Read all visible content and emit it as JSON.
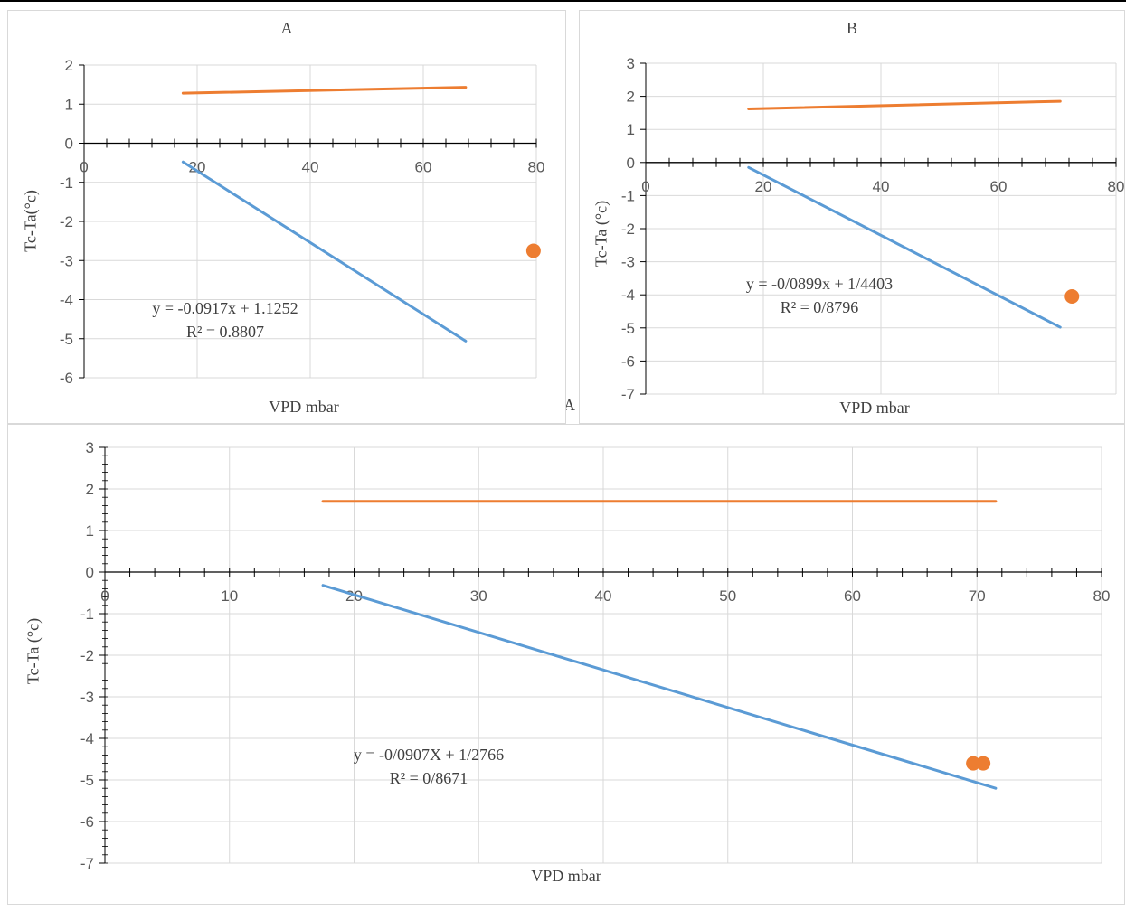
{
  "colors": {
    "fit_line": "#5b9bd5",
    "series2": "#ed7d31",
    "grid": "#d9d9d9",
    "axis": "#000000",
    "text": "#404040"
  },
  "stray_label": "A",
  "chart_data": [
    {
      "id": "A",
      "type": "scatter",
      "title": "A",
      "xlabel": "VPD mbar",
      "ylabel": "Tc-Ta(°c)",
      "xlim": [
        0,
        80
      ],
      "ylim": [
        -6,
        2
      ],
      "x_ticks": [
        0,
        20,
        40,
        60,
        80
      ],
      "y_ticks": [
        -6,
        -5,
        -4,
        -3,
        -2,
        -1,
        0,
        1,
        2
      ],
      "x_tick_labels": [
        "0",
        "20",
        "40",
        "60",
        "80"
      ],
      "y_tick_labels": [
        "-6",
        "-5",
        "-4",
        "-3",
        "-2",
        "-1",
        "0",
        "1",
        "2"
      ],
      "grid": true,
      "series": [
        {
          "kind": "trendline",
          "color": "#5b9bd5",
          "x": [
            17.5,
            67.5
          ],
          "y": [
            -0.48,
            -5.06
          ]
        },
        {
          "kind": "line",
          "color": "#ed7d31",
          "x": [
            17.5,
            67.5
          ],
          "y": [
            1.28,
            1.43
          ]
        },
        {
          "kind": "points",
          "color": "#ed7d31",
          "x": [
            79.5
          ],
          "y": [
            -2.75
          ]
        }
      ],
      "equation": "y = -0.0917x + 1.1252",
      "r2": "R² = 0.8807"
    },
    {
      "id": "B",
      "type": "scatter",
      "title": "B",
      "xlabel": "VPD mbar",
      "ylabel": "Tc-Ta (°c)",
      "xlim": [
        0,
        80
      ],
      "ylim": [
        -7,
        3
      ],
      "x_ticks": [
        0,
        20,
        40,
        60,
        80
      ],
      "y_ticks": [
        -7,
        -6,
        -5,
        -4,
        -3,
        -2,
        -1,
        0,
        1,
        2,
        3
      ],
      "x_tick_labels": [
        "0",
        "20",
        "40",
        "60",
        "80"
      ],
      "y_tick_labels": [
        "-7",
        "-6",
        "-5",
        "-4",
        "-3",
        "-2",
        "-1",
        "0",
        "1",
        "2",
        "3"
      ],
      "grid": true,
      "series": [
        {
          "kind": "trendline",
          "color": "#5b9bd5",
          "x": [
            17.5,
            70.5
          ],
          "y": [
            -0.15,
            -4.98
          ]
        },
        {
          "kind": "line",
          "color": "#ed7d31",
          "x": [
            17.5,
            70.5
          ],
          "y": [
            1.62,
            1.85
          ]
        },
        {
          "kind": "points",
          "color": "#ed7d31",
          "x": [
            72.5
          ],
          "y": [
            -4.05
          ]
        }
      ],
      "equation": "y = -0/0899x + 1/4403",
      "r2": "R² = 0/8796"
    },
    {
      "id": "C",
      "type": "scatter",
      "title": "",
      "xlabel": "VPD mbar",
      "ylabel": "Tc-Ta (°c)",
      "xlim": [
        0,
        80
      ],
      "ylim": [
        -7,
        3
      ],
      "x_ticks": [
        0,
        10,
        20,
        30,
        40,
        50,
        60,
        70,
        80
      ],
      "y_ticks": [
        -7,
        -6,
        -5,
        -4,
        -3,
        -2,
        -1,
        0,
        1,
        2,
        3
      ],
      "x_tick_labels": [
        "0",
        "10",
        "20",
        "30",
        "40",
        "50",
        "60",
        "70",
        "80"
      ],
      "y_tick_labels": [
        "-7",
        "-6",
        "-5",
        "-4",
        "-3",
        "-2",
        "-1",
        "0",
        "1",
        "2",
        "3"
      ],
      "x_minor_step": 2,
      "y_minor_step": 0.2,
      "grid": true,
      "series": [
        {
          "kind": "trendline",
          "color": "#5b9bd5",
          "x": [
            17.5,
            71.5
          ],
          "y": [
            -0.32,
            -5.2
          ]
        },
        {
          "kind": "line",
          "color": "#ed7d31",
          "x": [
            17.5,
            71.5
          ],
          "y": [
            1.7,
            1.7
          ]
        },
        {
          "kind": "points",
          "color": "#ed7d31",
          "x": [
            69.7,
            70.5
          ],
          "y": [
            -4.6,
            -4.6
          ]
        }
      ],
      "equation": "y = -0/0907X + 1/2766",
      "r2": "R² = 0/8671"
    }
  ]
}
